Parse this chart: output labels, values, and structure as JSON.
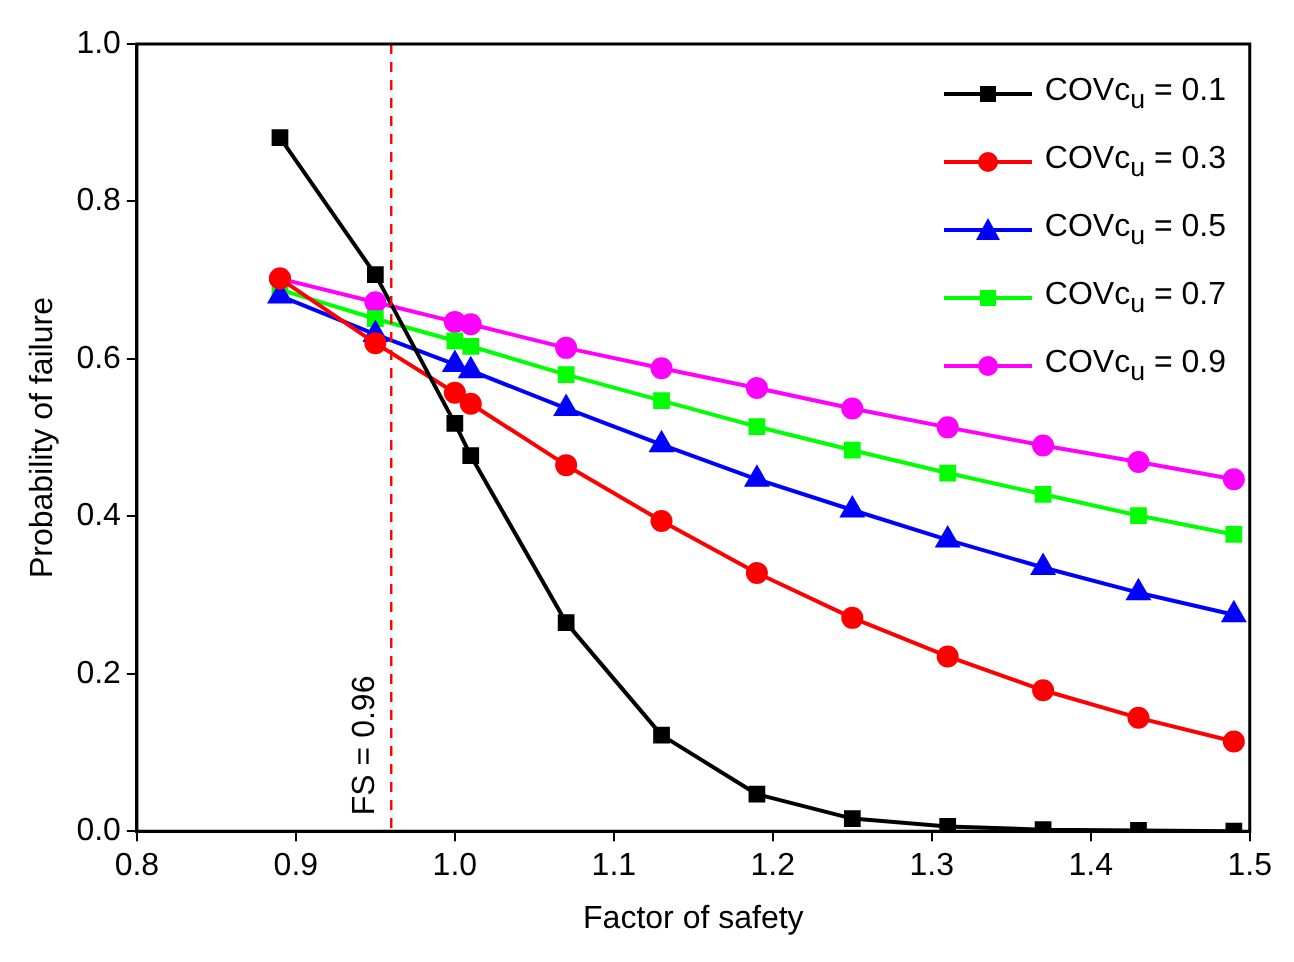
{
  "chart_data": {
    "type": "line",
    "xlabel": "Factor of safety",
    "ylabel": "Probability of failure",
    "x": [
      0.89,
      0.95,
      1.0,
      1.01,
      1.07,
      1.13,
      1.19,
      1.25,
      1.31,
      1.37,
      1.43,
      1.49
    ],
    "series": [
      {
        "name": "COVc$_{u}$ = 0.1",
        "color": "#000000",
        "marker": "square",
        "values": [
          0.881,
          0.707,
          0.518,
          0.477,
          0.265,
          0.122,
          0.047,
          0.016,
          0.006,
          0.002,
          0.001,
          0.0
        ]
      },
      {
        "name": "COVc$_{u}$ = 0.3",
        "color": "#ff0000",
        "marker": "circle",
        "values": [
          0.702,
          0.62,
          0.557,
          0.543,
          0.465,
          0.394,
          0.328,
          0.271,
          0.222,
          0.179,
          0.144,
          0.114
        ]
      },
      {
        "name": "COVc$_{u}$ = 0.5",
        "color": "#0000ff",
        "marker": "triangle",
        "values": [
          0.68,
          0.631,
          0.593,
          0.585,
          0.537,
          0.491,
          0.447,
          0.408,
          0.37,
          0.335,
          0.303,
          0.275
        ]
      },
      {
        "name": "COVc$_{u}$ = 0.7",
        "color": "#00ff00",
        "marker": "square",
        "values": [
          0.688,
          0.651,
          0.623,
          0.616,
          0.58,
          0.547,
          0.514,
          0.484,
          0.455,
          0.428,
          0.401,
          0.377
        ]
      },
      {
        "name": "COVc$_{u}$ = 0.9",
        "color": "#ff00ff",
        "marker": "circle",
        "values": [
          0.702,
          0.672,
          0.647,
          0.644,
          0.614,
          0.588,
          0.563,
          0.537,
          0.513,
          0.49,
          0.469,
          0.447
        ]
      }
    ],
    "xlim": [
      0.8,
      1.5
    ],
    "xticks": [
      0.8,
      0.9,
      {
        "value": 1,
        "label": "1.0"
      },
      1.1,
      1.2,
      1.3,
      1.4,
      1.5
    ],
    "ylim": [
      0,
      1.0
    ],
    "yticks": [
      {
        "value": 0,
        "label": "0.0"
      },
      0.2,
      0.4,
      0.6,
      0.8,
      {
        "value": 1,
        "label": "1.0"
      }
    ],
    "ref_lines": [
      {
        "axis": "x",
        "value": 0.96,
        "label": "FS = 0.96",
        "color": "#ff0000",
        "line_style": "dashed"
      }
    ],
    "legend": "top right",
    "line_style": "solid"
  }
}
